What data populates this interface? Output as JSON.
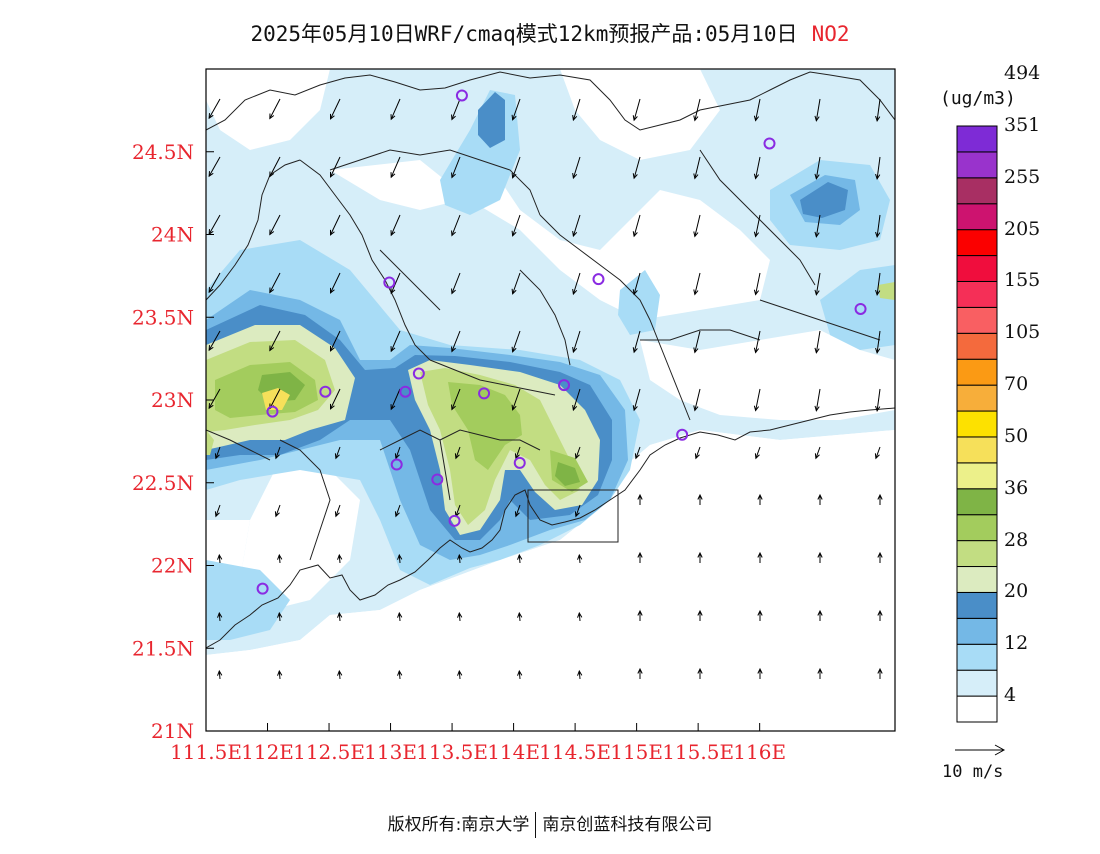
{
  "title": {
    "main": "2025年05月10日WRF/cmaq模式12km预报产品:05月10日",
    "pollutant": "NO2"
  },
  "chart_data": {
    "type": "heatmap",
    "map_extent": {
      "lon": [
        111.5,
        117.1
      ],
      "lat": [
        21.0,
        25.0
      ]
    },
    "x_ticks": [
      "111.5E",
      "112E",
      "112.5E",
      "113E",
      "113.5E",
      "114E",
      "114.5E",
      "115E",
      "115.5E",
      "116E"
    ],
    "x_tick_values": [
      111.5,
      112.0,
      112.5,
      113.0,
      113.5,
      114.0,
      114.5,
      115.0,
      115.5,
      116.0
    ],
    "y_ticks": [
      "21N",
      "21.5N",
      "22N",
      "22.5N",
      "23N",
      "23.5N",
      "24N",
      "24.5N"
    ],
    "y_tick_values": [
      21.0,
      21.5,
      22.0,
      22.5,
      23.0,
      23.5,
      24.0,
      24.5
    ],
    "colorbar": {
      "unit": "(ug/m3)",
      "colors": [
        "#ffffff",
        "#d6eef9",
        "#a8dcf6",
        "#74b8e6",
        "#4a8ec8",
        "#dcebc0",
        "#c2dd82",
        "#a3cc5d",
        "#7fb446",
        "#ecf08a",
        "#f6e05a",
        "#fde100",
        "#f7ae3a",
        "#fb9a14",
        "#f46a3d",
        "#f95f62",
        "#f52f57",
        "#f00d3d",
        "#fb0000",
        "#cd136f",
        "#a82f63",
        "#9933cc",
        "#7e2bd6"
      ],
      "labels": [
        "4",
        "12",
        "20",
        "28",
        "36",
        "50",
        "70",
        "105",
        "155",
        "205",
        "255",
        "351",
        "494"
      ]
    },
    "wind_reference": "10 m/s",
    "site_markers": [
      {
        "lon": 113.58,
        "lat": 24.84
      },
      {
        "lon": 116.08,
        "lat": 24.55
      },
      {
        "lon": 112.99,
        "lat": 23.71
      },
      {
        "lon": 114.69,
        "lat": 23.73
      },
      {
        "lon": 116.82,
        "lat": 23.55
      },
      {
        "lon": 113.23,
        "lat": 23.16
      },
      {
        "lon": 112.47,
        "lat": 23.05
      },
      {
        "lon": 113.12,
        "lat": 23.05
      },
      {
        "lon": 113.76,
        "lat": 23.04
      },
      {
        "lon": 114.41,
        "lat": 23.09
      },
      {
        "lon": 112.04,
        "lat": 22.93
      },
      {
        "lon": 115.37,
        "lat": 22.79
      },
      {
        "lon": 113.05,
        "lat": 22.61
      },
      {
        "lon": 114.05,
        "lat": 22.62
      },
      {
        "lon": 113.38,
        "lat": 22.52
      },
      {
        "lon": 113.52,
        "lat": 22.27
      },
      {
        "lon": 111.96,
        "lat": 21.86
      }
    ]
  },
  "footer": {
    "left": "版权所有:南京大学",
    "right": "南京创蓝科技有限公司"
  }
}
